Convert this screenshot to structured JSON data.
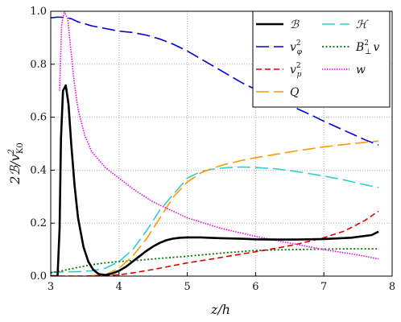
{
  "chart_data": {
    "type": "line",
    "xlabel": "z/h",
    "ylabel": "2B/v_K0^2",
    "xlim": [
      3,
      8
    ],
    "ylim": [
      0,
      1.0
    ],
    "xticks": [
      "3",
      "4",
      "5",
      "6",
      "7",
      "8"
    ],
    "yticks": [
      "0.0",
      "0.2",
      "0.4",
      "0.6",
      "0.8",
      "1.0"
    ],
    "grid": true,
    "legend_position": "top-right",
    "series": [
      {
        "name": "B",
        "color": "#000000",
        "style": "solid",
        "x": [
          3.0,
          3.1,
          3.13,
          3.15,
          3.18,
          3.22,
          3.26,
          3.3,
          3.35,
          3.4,
          3.48,
          3.55,
          3.62,
          3.7,
          3.8,
          3.9,
          4.0,
          4.1,
          4.2,
          4.3,
          4.4,
          4.5,
          4.6,
          4.7,
          4.8,
          4.9,
          5.0,
          5.2,
          5.5,
          5.8,
          6.0,
          6.3,
          6.6,
          7.0,
          7.4,
          7.7,
          7.8
        ],
        "y": [
          0.0,
          0.0,
          0.18,
          0.52,
          0.7,
          0.72,
          0.65,
          0.5,
          0.34,
          0.22,
          0.11,
          0.055,
          0.025,
          0.008,
          0.004,
          0.01,
          0.02,
          0.035,
          0.055,
          0.075,
          0.095,
          0.112,
          0.126,
          0.136,
          0.142,
          0.145,
          0.146,
          0.146,
          0.143,
          0.141,
          0.139,
          0.138,
          0.138,
          0.14,
          0.145,
          0.155,
          0.168
        ]
      },
      {
        "name": "v_phi^2",
        "color": "#0000dd",
        "style": "long-dash",
        "x": [
          3.0,
          3.1,
          3.2,
          3.3,
          3.4,
          3.6,
          3.8,
          4.0,
          4.2,
          4.4,
          4.6,
          4.8,
          5.0,
          5.2,
          5.4,
          5.6,
          5.8,
          6.0,
          6.2,
          6.5,
          6.8,
          7.0,
          7.3,
          7.6,
          7.8
        ],
        "y": [
          0.975,
          0.978,
          0.977,
          0.972,
          0.96,
          0.945,
          0.935,
          0.925,
          0.92,
          0.91,
          0.895,
          0.875,
          0.85,
          0.82,
          0.79,
          0.76,
          0.73,
          0.705,
          0.68,
          0.645,
          0.61,
          0.585,
          0.55,
          0.515,
          0.495
        ]
      },
      {
        "name": "v_p^2",
        "color": "#dd0000",
        "style": "dash",
        "x": [
          3.0,
          3.5,
          3.8,
          4.0,
          4.2,
          4.5,
          4.8,
          5.0,
          5.3,
          5.6,
          6.0,
          6.3,
          6.6,
          7.0,
          7.3,
          7.6,
          7.8
        ],
        "y": [
          0.0,
          0.0,
          0.002,
          0.005,
          0.012,
          0.025,
          0.04,
          0.05,
          0.062,
          0.075,
          0.092,
          0.105,
          0.12,
          0.145,
          0.17,
          0.21,
          0.245
        ]
      },
      {
        "name": "Q",
        "color": "#ff9900",
        "style": "long-dash",
        "x": [
          3.0,
          3.5,
          3.8,
          4.0,
          4.2,
          4.4,
          4.6,
          4.8,
          5.0,
          5.2,
          5.4,
          5.6,
          5.8,
          6.0,
          6.3,
          6.6,
          7.0,
          7.3,
          7.6,
          7.8
        ],
        "y": [
          0.0,
          0.0,
          0.005,
          0.03,
          0.075,
          0.14,
          0.22,
          0.3,
          0.355,
          0.39,
          0.41,
          0.425,
          0.437,
          0.447,
          0.46,
          0.473,
          0.488,
          0.497,
          0.505,
          0.51
        ]
      },
      {
        "name": "H",
        "color": "#33cccc",
        "style": "long-dash",
        "x": [
          3.0,
          3.2,
          3.4,
          3.6,
          3.8,
          4.0,
          4.2,
          4.4,
          4.6,
          4.8,
          5.0,
          5.2,
          5.4,
          5.6,
          5.8,
          6.0,
          6.3,
          6.6,
          7.0,
          7.3,
          7.6,
          7.8
        ],
        "y": [
          0.015,
          0.016,
          0.017,
          0.02,
          0.03,
          0.055,
          0.1,
          0.17,
          0.25,
          0.31,
          0.37,
          0.395,
          0.405,
          0.41,
          0.412,
          0.41,
          0.405,
          0.395,
          0.378,
          0.363,
          0.345,
          0.335
        ]
      },
      {
        "name": "B_perp^2 v",
        "color": "#007700",
        "style": "dotted",
        "x": [
          3.0,
          3.2,
          3.4,
          3.6,
          3.8,
          4.0,
          4.3,
          4.6,
          5.0,
          5.5,
          6.0,
          6.5,
          7.0,
          7.4,
          7.8
        ],
        "y": [
          0.012,
          0.022,
          0.033,
          0.043,
          0.05,
          0.055,
          0.06,
          0.067,
          0.075,
          0.087,
          0.097,
          0.1,
          0.102,
          0.103,
          0.103
        ]
      },
      {
        "name": "w",
        "color": "#ee00ee",
        "style": "fine-dotted",
        "x": [
          3.13,
          3.16,
          3.2,
          3.25,
          3.3,
          3.35,
          3.4,
          3.5,
          3.6,
          3.8,
          4.0,
          4.2,
          4.5,
          5.0,
          5.5,
          6.0,
          6.5,
          7.0,
          7.5,
          7.8
        ],
        "y": [
          0.7,
          0.95,
          1.0,
          0.97,
          0.84,
          0.72,
          0.63,
          0.53,
          0.47,
          0.41,
          0.37,
          0.33,
          0.28,
          0.22,
          0.18,
          0.15,
          0.125,
          0.1,
          0.08,
          0.065
        ]
      }
    ]
  },
  "legend": {
    "items": [
      {
        "base": "ℬ",
        "sup": "",
        "sub": "",
        "tail": ""
      },
      {
        "base": "ℋ",
        "sup": "",
        "sub": "",
        "tail": ""
      },
      {
        "base": "v",
        "sup": "2",
        "sub": "φ",
        "tail": ""
      },
      {
        "base": "B",
        "sup": "2",
        "sub": "⊥",
        "tail": "v"
      },
      {
        "base": "v",
        "sup": "2",
        "sub": "p",
        "tail": ""
      },
      {
        "base": "w",
        "sup": "",
        "sub": "",
        "tail": ""
      },
      {
        "base": "Q",
        "sup": "",
        "sub": "",
        "tail": ""
      }
    ]
  },
  "axis": {
    "xlabel_text": "z/h",
    "ylabel_main": "2ℬ/v",
    "ylabel_sup": "2",
    "ylabel_sub": "K0"
  }
}
